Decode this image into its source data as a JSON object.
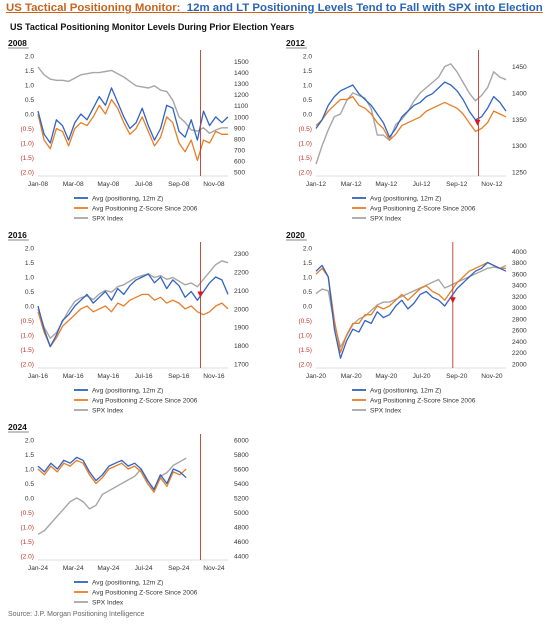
{
  "header": {
    "title_part1": "US Tactical Positioning Monitor:",
    "title_part2": "12m and LT Positioning Levels Tend to Fall with SPX into Election",
    "subtitle": "US Tactical Positioning Monitor Levels During Prior Election Years"
  },
  "footer": {
    "source": "Source: J.P. Morgan Positioning Intelligence"
  },
  "colors": {
    "avg_positioning": "#3163c4",
    "zscore": "#e87d28",
    "spx": "#a6a6a6",
    "election_line": "#c0392b",
    "arrow": "#e0141e"
  },
  "chart_data": [
    {
      "type": "line",
      "title": "2008",
      "x_ticks": [
        "Jan-08",
        "Mar-08",
        "May-08",
        "Jul-08",
        "Sep-08",
        "Nov-08"
      ],
      "left_ticks": [
        "2.0",
        "1.5",
        "1.0",
        "0.5",
        "0.0",
        "(0.5)",
        "(1.0)",
        "(1.5)",
        "(2.0)"
      ],
      "left_ylim": [
        -2,
        2
      ],
      "right_ticks": [
        "1500",
        "1400",
        "1300",
        "1200",
        "1100",
        "1000",
        "900",
        "800",
        "700",
        "600",
        "500"
      ],
      "right_ylim": [
        500,
        1550
      ],
      "election_x": 0.855,
      "arrow": false,
      "series": [
        {
          "name": "Avg (positioning, 12m Z)",
          "axis": "left",
          "values": [
            0.1,
            -0.7,
            -1.0,
            -0.2,
            -0.4,
            -0.9,
            -0.3,
            0.0,
            -0.2,
            0.2,
            0.6,
            0.3,
            0.9,
            0.4,
            -0.1,
            -0.5,
            -0.3,
            0.2,
            -0.4,
            -0.9,
            -0.5,
            0.3,
            0.2,
            -0.6,
            -0.8,
            -0.2,
            -0.9,
            0.1,
            -0.4,
            -0.1,
            -0.3,
            -0.1
          ]
        },
        {
          "name": "Avg Positioning Z-Score Since 2006",
          "axis": "left",
          "values": [
            0.0,
            -0.9,
            -1.2,
            -0.5,
            -0.6,
            -1.1,
            -0.5,
            -0.3,
            -0.4,
            -0.1,
            0.3,
            0.0,
            0.5,
            0.2,
            -0.3,
            -0.7,
            -0.5,
            -0.1,
            -0.6,
            -1.1,
            -0.8,
            -0.1,
            -0.3,
            -1.0,
            -1.3,
            -0.9,
            -1.6,
            -0.9,
            -1.0,
            -0.6,
            -0.7,
            -0.7
          ]
        },
        {
          "name": "SPX Index",
          "axis": "right",
          "values": [
            1450,
            1380,
            1340,
            1330,
            1330,
            1320,
            1350,
            1380,
            1390,
            1400,
            1400,
            1410,
            1420,
            1390,
            1360,
            1320,
            1280,
            1270,
            1260,
            1280,
            1240,
            1230,
            1150,
            1000,
            950,
            880,
            870,
            900,
            850,
            880,
            900,
            900
          ]
        }
      ]
    },
    {
      "type": "line",
      "title": "2012",
      "x_ticks": [
        "Jan-12",
        "Mar-12",
        "May-12",
        "Jul-12",
        "Sep-12",
        "Nov-12"
      ],
      "left_ticks": [
        "2.0",
        "1.5",
        "1.0",
        "0.5",
        "0.0",
        "(0.5)",
        "(1.0)",
        "(1.5)",
        "(2.0)"
      ],
      "left_ylim": [
        -2,
        2
      ],
      "right_ticks": [
        "1450",
        "1400",
        "1350",
        "1300",
        "1250"
      ],
      "right_ylim": [
        1250,
        1470
      ],
      "election_x": 0.855,
      "arrow": true,
      "arrow_x": 0.85,
      "series": [
        {
          "name": "Avg (positioning, 12m Z)",
          "axis": "left",
          "values": [
            -0.5,
            -0.2,
            0.3,
            0.6,
            0.8,
            0.9,
            1.0,
            0.7,
            0.5,
            0.3,
            0.0,
            -0.3,
            -0.8,
            -0.5,
            -0.1,
            0.1,
            0.3,
            0.4,
            0.6,
            0.7,
            0.9,
            1.1,
            1.0,
            0.8,
            0.5,
            0.1,
            -0.2,
            -0.1,
            0.2,
            0.6,
            0.4,
            0.1
          ]
        },
        {
          "name": "Avg Positioning Z-Score Since 2006",
          "axis": "left",
          "values": [
            -0.4,
            -0.2,
            0.1,
            0.3,
            0.5,
            0.5,
            0.6,
            0.3,
            0.2,
            0.0,
            -0.3,
            -0.5,
            -0.9,
            -0.7,
            -0.4,
            -0.3,
            -0.2,
            -0.1,
            0.1,
            0.2,
            0.3,
            0.4,
            0.3,
            0.2,
            0.0,
            -0.3,
            -0.6,
            -0.5,
            -0.3,
            0.1,
            0.0,
            -0.1
          ]
        },
        {
          "name": "SPX Index",
          "axis": "right",
          "values": [
            1265,
            1300,
            1330,
            1355,
            1360,
            1385,
            1400,
            1395,
            1390,
            1370,
            1320,
            1320,
            1310,
            1340,
            1350,
            1365,
            1385,
            1400,
            1410,
            1420,
            1430,
            1450,
            1455,
            1440,
            1420,
            1400,
            1385,
            1395,
            1410,
            1440,
            1430,
            1425
          ]
        }
      ]
    },
    {
      "type": "line",
      "title": "2016",
      "x_ticks": [
        "Jan-16",
        "Mar-16",
        "May-16",
        "Jul-16",
        "Sep-16",
        "Nov-16"
      ],
      "left_ticks": [
        "2.0",
        "1.5",
        "1.0",
        "0.5",
        "0.0",
        "(0.5)",
        "(1.0)",
        "(1.5)",
        "(2.0)"
      ],
      "left_ylim": [
        -2,
        2
      ],
      "right_ticks": [
        "2300",
        "2200",
        "2100",
        "2000",
        "1900",
        "1800",
        "1700"
      ],
      "right_ylim": [
        1700,
        2330
      ],
      "election_x": 0.855,
      "arrow": true,
      "arrow_x": 0.855,
      "series": [
        {
          "name": "Avg (positioning, 12m Z)",
          "axis": "left",
          "values": [
            0.0,
            -0.8,
            -1.4,
            -1.0,
            -0.5,
            -0.3,
            0.0,
            0.2,
            0.4,
            0.1,
            0.3,
            0.5,
            0.2,
            0.6,
            0.4,
            0.7,
            0.9,
            1.0,
            1.1,
            0.8,
            1.0,
            0.6,
            0.9,
            0.7,
            0.3,
            0.5,
            0.2,
            0.5,
            0.8,
            1.0,
            0.9,
            0.4
          ]
        },
        {
          "name": "Avg Positioning Z-Score Since 2006",
          "axis": "left",
          "values": [
            -0.2,
            -0.9,
            -1.4,
            -1.1,
            -0.7,
            -0.5,
            -0.3,
            -0.1,
            0.0,
            -0.2,
            -0.1,
            0.0,
            -0.2,
            0.1,
            0.0,
            0.2,
            0.3,
            0.4,
            0.4,
            0.2,
            0.3,
            0.1,
            0.2,
            0.1,
            -0.1,
            0.0,
            -0.2,
            -0.3,
            -0.2,
            0.0,
            0.1,
            -0.1
          ]
        },
        {
          "name": "SPX Index",
          "axis": "right",
          "values": [
            2000,
            1900,
            1840,
            1870,
            1930,
            1990,
            2040,
            2060,
            2070,
            2050,
            2080,
            2100,
            2090,
            2120,
            2130,
            2150,
            2170,
            2180,
            2190,
            2170,
            2180,
            2160,
            2170,
            2150,
            2130,
            2140,
            2120,
            2160,
            2200,
            2240,
            2260,
            2250
          ]
        }
      ]
    },
    {
      "type": "line",
      "title": "2020",
      "x_ticks": [
        "Jan-20",
        "Mar-20",
        "May-20",
        "Jul-20",
        "Sep-20",
        "Nov-20"
      ],
      "left_ticks": [
        "2.0",
        "1.5",
        "1.0",
        "0.5",
        "0.0",
        "(0.5)",
        "(1.0)",
        "(1.5)",
        "(2.0)"
      ],
      "left_ylim": [
        -2,
        2
      ],
      "right_ticks": [
        "4000",
        "3800",
        "3600",
        "3400",
        "3200",
        "3000",
        "2800",
        "2600",
        "2400",
        "2200",
        "2000"
      ],
      "right_ylim": [
        2000,
        4060
      ],
      "election_x": 0.72,
      "arrow": true,
      "arrow_x": 0.72,
      "series": [
        {
          "name": "Avg (positioning, 12m Z)",
          "axis": "left",
          "values": [
            1.2,
            1.4,
            1.0,
            -0.8,
            -1.8,
            -1.2,
            -0.8,
            -0.9,
            -0.5,
            -0.6,
            -0.2,
            -0.4,
            -0.3,
            0.0,
            0.2,
            -0.1,
            0.1,
            0.4,
            0.5,
            0.3,
            0.2,
            0.0,
            0.3,
            0.6,
            0.8,
            1.0,
            1.2,
            1.3,
            1.5,
            1.4,
            1.3,
            1.2
          ]
        },
        {
          "name": "Avg Positioning Z-Score Since 2006",
          "axis": "left",
          "values": [
            1.1,
            1.3,
            1.0,
            -0.5,
            -1.6,
            -1.0,
            -0.6,
            -0.6,
            -0.3,
            -0.3,
            0.0,
            -0.1,
            0.0,
            0.2,
            0.4,
            0.2,
            0.4,
            0.6,
            0.7,
            0.5,
            0.4,
            0.2,
            0.5,
            0.8,
            1.0,
            1.2,
            1.3,
            1.4,
            1.5,
            1.4,
            1.3,
            1.3
          ]
        },
        {
          "name": "SPX Index",
          "axis": "right",
          "values": [
            3250,
            3330,
            3300,
            2700,
            2300,
            2500,
            2700,
            2800,
            2850,
            2950,
            3050,
            3100,
            3100,
            3150,
            3200,
            3250,
            3300,
            3350,
            3400,
            3450,
            3500,
            3350,
            3400,
            3450,
            3500,
            3550,
            3600,
            3650,
            3700,
            3720,
            3700,
            3750
          ]
        }
      ]
    },
    {
      "type": "line",
      "title": "2024",
      "x_ticks": [
        "Jan-24",
        "Mar-24",
        "May-24",
        "Jul-24",
        "Sep-24",
        "Nov-24"
      ],
      "left_ticks": [
        "2.0",
        "1.5",
        "1.0",
        "0.5",
        "0.0",
        "(0.5)",
        "(1.0)",
        "(1.5)",
        "(2.0)"
      ],
      "left_ylim": [
        -2,
        2
      ],
      "right_ticks": [
        "6000",
        "5800",
        "5600",
        "5400",
        "5200",
        "5000",
        "4800",
        "4600",
        "4400"
      ],
      "right_ylim": [
        4400,
        6000
      ],
      "election_x": 0.855,
      "arrow": false,
      "series": [
        {
          "name": "Avg (positioning, 12m Z)",
          "axis": "left",
          "values": [
            1.1,
            0.9,
            1.2,
            1.0,
            1.3,
            1.2,
            1.4,
            1.3,
            0.9,
            0.6,
            0.8,
            1.1,
            1.2,
            1.3,
            1.1,
            1.2,
            1.0,
            0.6,
            0.3,
            0.8,
            0.5,
            1.0,
            0.9,
            0.7
          ]
        },
        {
          "name": "Avg Positioning Z-Score Since 2006",
          "axis": "left",
          "values": [
            1.0,
            0.8,
            1.1,
            0.9,
            1.2,
            1.1,
            1.3,
            1.2,
            0.8,
            0.5,
            0.7,
            1.0,
            1.1,
            1.2,
            1.0,
            1.1,
            0.9,
            0.5,
            0.2,
            0.7,
            0.4,
            0.9,
            0.8,
            1.0
          ]
        },
        {
          "name": "SPX Index",
          "axis": "right",
          "values": [
            4700,
            4750,
            4850,
            4950,
            5050,
            5150,
            5200,
            5150,
            5050,
            5100,
            5250,
            5300,
            5350,
            5400,
            5450,
            5500,
            5600,
            5450,
            5300,
            5500,
            5550,
            5650,
            5700,
            5750
          ]
        }
      ]
    }
  ]
}
